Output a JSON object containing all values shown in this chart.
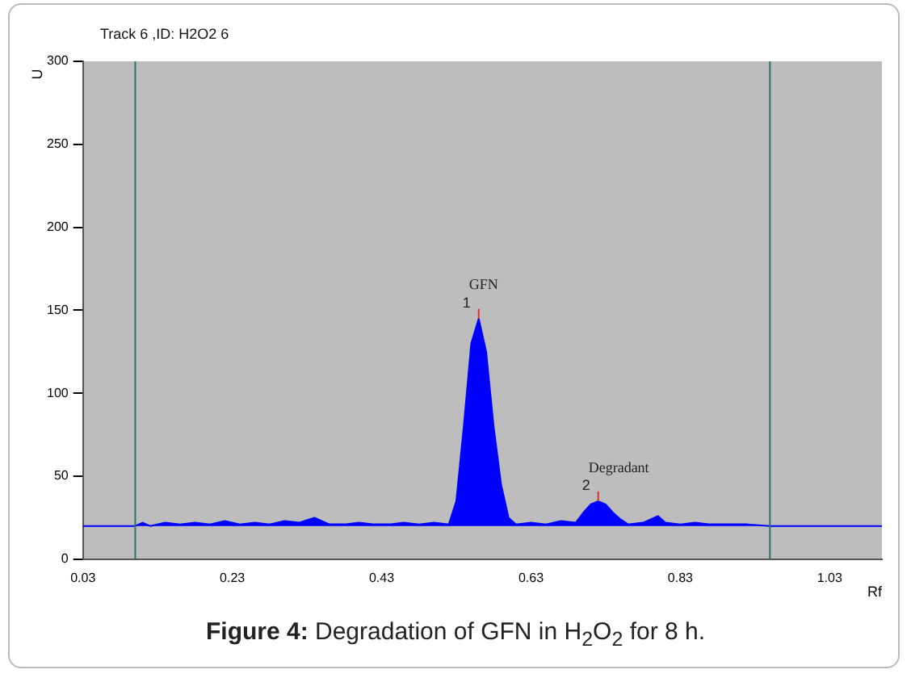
{
  "chart_data": {
    "type": "area",
    "title": "Track  6 ,ID: H2O2 6",
    "xlabel": "Rf",
    "ylabel": "U",
    "x": [
      0.03,
      0.1,
      0.11,
      0.12,
      0.14,
      0.16,
      0.18,
      0.2,
      0.22,
      0.24,
      0.26,
      0.28,
      0.3,
      0.32,
      0.34,
      0.36,
      0.38,
      0.4,
      0.42,
      0.44,
      0.46,
      0.48,
      0.5,
      0.52,
      0.53,
      0.54,
      0.55,
      0.56,
      0.57,
      0.58,
      0.59,
      0.6,
      0.61,
      0.63,
      0.65,
      0.67,
      0.69,
      0.7,
      0.71,
      0.72,
      0.73,
      0.74,
      0.75,
      0.76,
      0.78,
      0.8,
      0.81,
      0.83,
      0.85,
      0.87,
      0.89,
      0.92,
      0.95,
      1.1
    ],
    "series": [
      {
        "color": "#0000ff",
        "values": [
          20,
          20,
          22,
          20,
          22,
          21,
          22,
          21,
          23,
          21,
          22,
          21,
          23,
          22,
          25,
          21,
          21,
          22,
          21,
          21,
          22,
          21,
          22,
          21,
          35,
          80,
          130,
          145,
          125,
          80,
          45,
          25,
          21,
          22,
          21,
          23,
          22,
          28,
          33,
          35,
          33,
          28,
          24,
          21,
          22,
          26,
          22,
          21,
          22,
          21,
          21,
          21,
          20,
          20
        ]
      }
    ],
    "xlim": [
      0.03,
      1.1
    ],
    "xticks": [
      0.03,
      0.23,
      0.43,
      0.63,
      0.83,
      1.03
    ],
    "ylim": [
      0,
      300
    ],
    "yticks": [
      0,
      50,
      100,
      150,
      200,
      250,
      300
    ],
    "grid": false,
    "legend": false,
    "ref_lines": [
      {
        "axis": "x",
        "value": 0.1,
        "color": "#2f6f6f"
      },
      {
        "axis": "x",
        "value": 0.95,
        "color": "#2f6f6f"
      }
    ],
    "annotations": [
      "GFN",
      "1",
      "Degradant",
      "2",
      "Figure 4: Degradation of GFN in H$_{2}$O$_{2}$ for 8 h."
    ]
  }
}
